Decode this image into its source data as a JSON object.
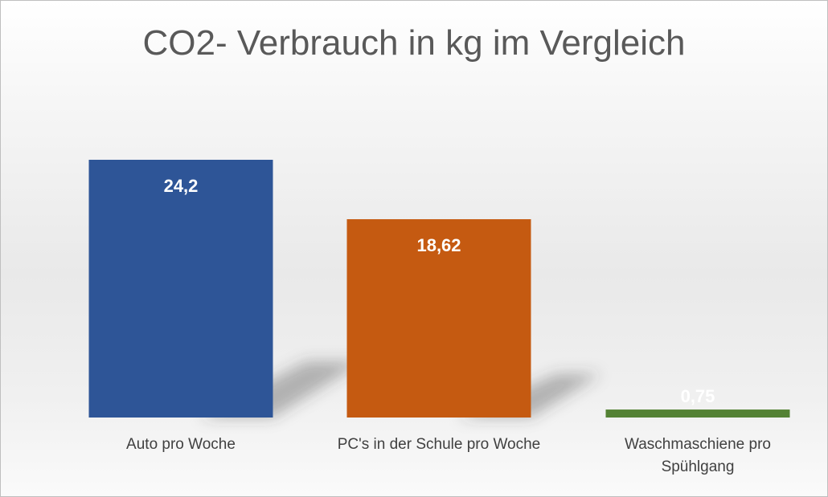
{
  "chart_data": {
    "type": "bar",
    "title": "CO2- Verbrauch in kg im Vergleich",
    "categories": [
      "Auto pro Woche",
      "PC's in der Schule pro Woche",
      "Waschmaschiene pro Spühlgang"
    ],
    "values": [
      24.2,
      18.62,
      0.75
    ],
    "data_labels": [
      "24,2",
      "18,62",
      "0,75"
    ],
    "colors": [
      "#2E5597",
      "#C55A11",
      "#548235"
    ],
    "data_label_color": "#FFFFFF",
    "xlabel": "",
    "ylabel": "",
    "ylim": [
      0,
      24.2
    ],
    "grid": false,
    "legend": "none"
  }
}
